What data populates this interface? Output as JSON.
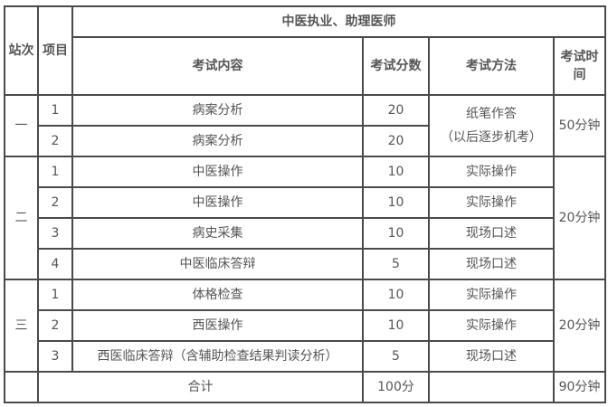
{
  "header": {
    "station": "站次",
    "item": "项目",
    "group": "中医执业、助理医师",
    "content": "考试内容",
    "score": "考试分数",
    "method": "考试方法",
    "time": "考试时间"
  },
  "stations": [
    {
      "name": "一",
      "time": "50分钟",
      "rows": [
        {
          "item": "1",
          "content": "病案分析",
          "score": "20"
        },
        {
          "item": "2",
          "content": "病案分析",
          "score": "20"
        }
      ],
      "method_merged": "纸笔作答\n（以后逐步机考）"
    },
    {
      "name": "二",
      "time": "20分钟",
      "rows": [
        {
          "item": "1",
          "content": "中医操作",
          "score": "10",
          "method": "实际操作"
        },
        {
          "item": "2",
          "content": "中医操作",
          "score": "10",
          "method": "实际操作"
        },
        {
          "item": "3",
          "content": "病史采集",
          "score": "10",
          "method": "现场口述"
        },
        {
          "item": "4",
          "content": "中医临床答辩",
          "score": "5",
          "method": "现场口述"
        }
      ]
    },
    {
      "name": "三",
      "time": "20分钟",
      "rows": [
        {
          "item": "1",
          "content": "体格检查",
          "score": "10",
          "method": "实际操作"
        },
        {
          "item": "2",
          "content": "西医操作",
          "score": "10",
          "method": "实际操作"
        },
        {
          "item": "3",
          "content": "西医临床答辩（含辅助检查结果判读分析）",
          "score": "5",
          "method": "现场口述"
        }
      ]
    }
  ],
  "total": {
    "label": "合计",
    "score": "100分",
    "time": "90分钟"
  }
}
